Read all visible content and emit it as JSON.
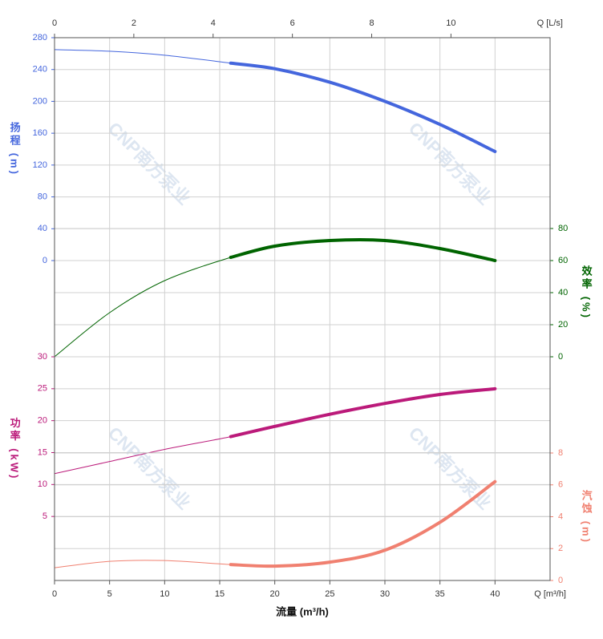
{
  "chart_data": {
    "type": "line",
    "xlabel": "流量 (m³/h)",
    "x_axis_unit": "Q [m³/h]",
    "x2_axis_unit": "Q [L/s]",
    "xlim": [
      0,
      45
    ],
    "xticks": [
      0,
      5,
      10,
      15,
      20,
      25,
      30,
      35,
      40
    ],
    "x2lim": [
      0,
      12.5
    ],
    "x2ticks": [
      0,
      2,
      4,
      6,
      8,
      10
    ],
    "grid": true,
    "watermark": "CNP南方泵业",
    "bold_range": [
      16,
      40
    ],
    "curves": [
      {
        "ylabel": "扬程 (m)",
        "side": "left",
        "color": "#4466dd",
        "ylim": [
          0,
          280
        ],
        "yticks": [
          0,
          40,
          80,
          120,
          160,
          200,
          240,
          280
        ],
        "x": [
          0,
          5,
          10,
          16,
          20,
          25,
          30,
          35,
          40
        ],
        "values": [
          265,
          263,
          258,
          248,
          241,
          224,
          200,
          171,
          137
        ]
      },
      {
        "ylabel": "效率 (%)",
        "side": "right",
        "color": "#006400",
        "ylim": [
          0,
          80
        ],
        "yticks": [
          0,
          20,
          40,
          60,
          80
        ],
        "x": [
          0,
          5,
          10,
          16,
          20,
          25,
          30,
          35,
          40
        ],
        "values": [
          0,
          27.5,
          47.5,
          62,
          69,
          72.5,
          72.5,
          67.5,
          60
        ]
      },
      {
        "ylabel": "功率 (kW)",
        "side": "left",
        "color": "#bb1a7a",
        "ylim": [
          0,
          30
        ],
        "yticks": [
          5,
          10,
          15,
          20,
          25,
          30
        ],
        "x": [
          0,
          5,
          10,
          16,
          20,
          25,
          30,
          35,
          40
        ],
        "values": [
          11.7,
          13.6,
          15.5,
          17.5,
          19.1,
          21.0,
          22.7,
          24.1,
          25.0
        ]
      },
      {
        "ylabel": "汽蚀 (m)",
        "side": "right",
        "color": "#f08070",
        "ylim": [
          0,
          8
        ],
        "yticks": [
          0,
          2,
          4,
          6,
          8
        ],
        "x": [
          0,
          5,
          10,
          16,
          20,
          25,
          30,
          35,
          40
        ],
        "values": [
          0.8,
          1.2,
          1.25,
          1.0,
          0.9,
          1.15,
          1.9,
          3.65,
          6.2
        ]
      }
    ]
  }
}
